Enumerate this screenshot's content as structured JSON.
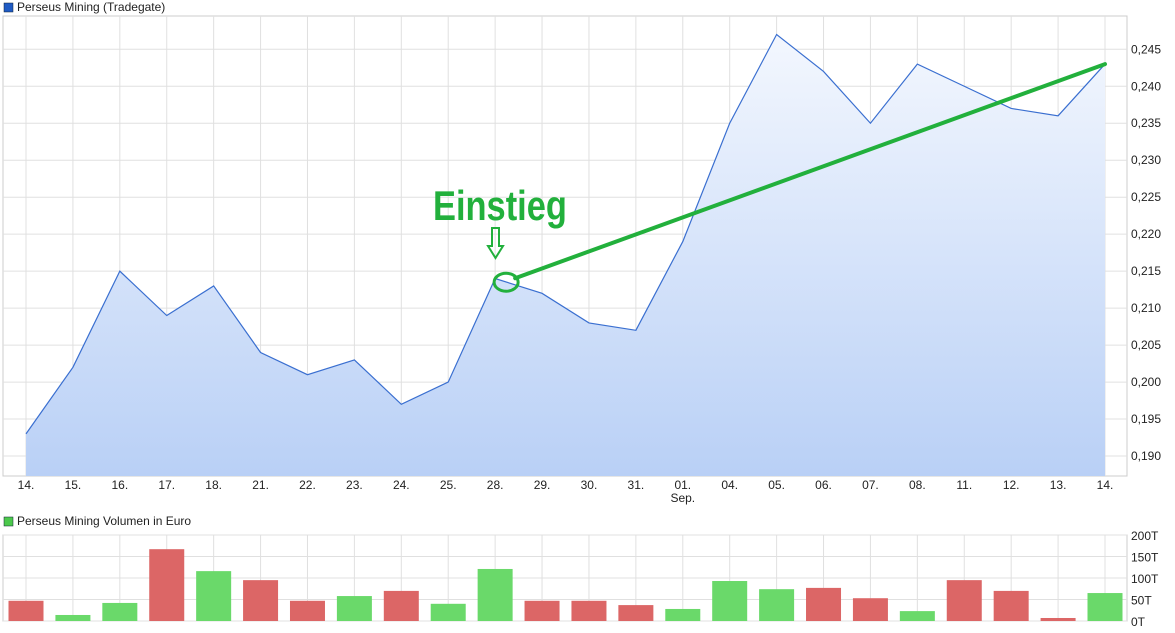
{
  "chart_data": [
    {
      "type": "area",
      "title": "Perseus Mining (Tradegate)",
      "legend_color": "#1f5bc4",
      "line_color": "#3a6fd0",
      "categories": [
        "14.",
        "15.",
        "16.",
        "17.",
        "18.",
        "21.",
        "22.",
        "23.",
        "24.",
        "25.",
        "28.",
        "29.",
        "30.",
        "31.",
        "01.",
        "04.",
        "05.",
        "06.",
        "07.",
        "08.",
        "11.",
        "12.",
        "13.",
        "14."
      ],
      "month_label": {
        "index": 14,
        "text": "Sep."
      },
      "values": [
        0.193,
        0.202,
        0.215,
        0.209,
        0.213,
        0.204,
        0.201,
        0.203,
        0.197,
        0.2,
        0.214,
        0.212,
        0.208,
        0.207,
        0.219,
        0.235,
        0.247,
        0.242,
        0.235,
        0.243,
        0.24,
        0.237,
        0.236,
        0.243
      ],
      "yticks": [
        "0,190",
        "0,195",
        "0,200",
        "0,205",
        "0,210",
        "0,215",
        "0,220",
        "0,225",
        "0,230",
        "0,235",
        "0,240",
        "0,245"
      ],
      "ytick_values": [
        0.19,
        0.195,
        0.2,
        0.205,
        0.21,
        0.215,
        0.22,
        0.225,
        0.23,
        0.235,
        0.24,
        0.245
      ],
      "ylim": [
        0.1873,
        0.2495
      ],
      "grid": true,
      "annotation": {
        "text": "Einstieg",
        "color": "#22b03c",
        "entry_index": 10,
        "entry_value": 0.2135,
        "trend_end_index": 23,
        "trend_end_value": 0.243
      }
    },
    {
      "type": "bar",
      "title": "Perseus Mining Volumen in Euro",
      "legend_color": "#4cc94c",
      "up_color": "#6ad96a",
      "down_color": "#dc6666",
      "values": [
        47,
        14,
        42,
        167,
        116,
        95,
        47,
        58,
        70,
        40,
        121,
        47,
        47,
        37,
        28,
        93,
        74,
        77,
        53,
        23,
        95,
        70,
        7,
        65
      ],
      "directions": [
        "down",
        "up",
        "up",
        "down",
        "up",
        "down",
        "down",
        "up",
        "down",
        "up",
        "up",
        "down",
        "down",
        "down",
        "up",
        "up",
        "up",
        "down",
        "down",
        "up",
        "down",
        "down",
        "down",
        "up"
      ],
      "yticks": [
        "0T",
        "50T",
        "100T",
        "150T",
        "200T"
      ],
      "ytick_values": [
        0,
        50,
        100,
        150,
        200
      ],
      "ylim": [
        0,
        200
      ],
      "grid": true
    }
  ]
}
